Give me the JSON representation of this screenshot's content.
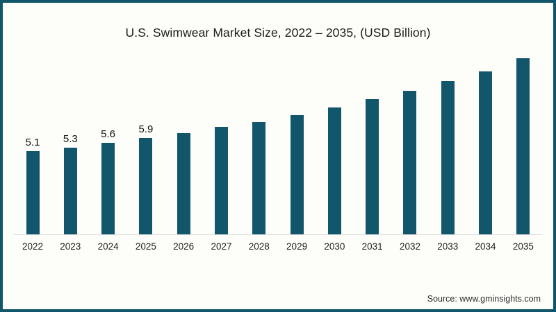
{
  "chart": {
    "title": "U.S. Swimwear Market Size, 2022 – 2035, (USD Billion)",
    "source": "Source: www.gminsights.com"
  },
  "chart_data": {
    "type": "bar",
    "title": "U.S. Swimwear Market Size, 2022 – 2035, (USD Billion)",
    "xlabel": "",
    "ylabel": "",
    "categories": [
      "2022",
      "2023",
      "2024",
      "2025",
      "2026",
      "2027",
      "2028",
      "2029",
      "2030",
      "2031",
      "2032",
      "2033",
      "2034",
      "2035"
    ],
    "values": [
      5.1,
      5.3,
      5.6,
      5.9,
      6.2,
      6.6,
      6.9,
      7.3,
      7.8,
      8.3,
      8.8,
      9.4,
      10.0,
      10.8
    ],
    "data_labels": [
      "5.1",
      "5.3",
      "5.6",
      "5.9",
      "",
      "",
      "",
      "",
      "",
      "",
      "",
      "",
      "",
      ""
    ],
    "ylim": [
      0,
      14.2
    ],
    "grid": false,
    "legend": "none",
    "series_name": "U.S. Swimwear Market Size (USD Billion)"
  },
  "style": {
    "bar_color": "#12566b",
    "border_color": "#12566b",
    "axis_color": "#dcdcdc",
    "background_color": "#fdfdfa",
    "text_color": "#1b1b1b"
  }
}
